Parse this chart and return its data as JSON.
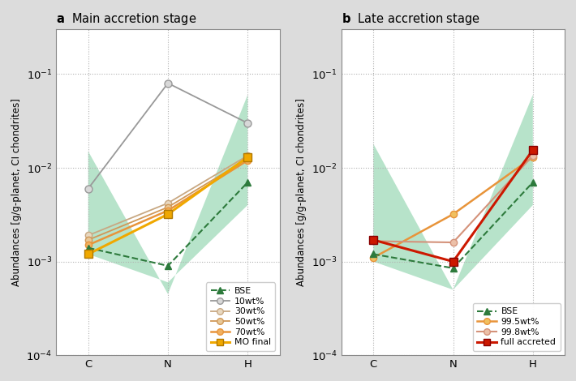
{
  "panel_a_title": "Main accretion stage",
  "panel_b_title": "Late accretion stage",
  "ylabel": "Abundances [g/g-planet, CI chondrites]",
  "elements": [
    "C",
    "N",
    "H"
  ],
  "ylim": [
    0.0001,
    0.3
  ],
  "yticks": [
    0.0001,
    0.001,
    0.01,
    0.1
  ],
  "panel_a": {
    "bse": [
      0.0014,
      0.0009,
      0.007
    ],
    "wt10": [
      0.006,
      0.08,
      0.03
    ],
    "wt30": [
      0.0019,
      0.0042,
      0.0135
    ],
    "wt50": [
      0.0017,
      0.0038,
      0.0125
    ],
    "wt70": [
      0.0015,
      0.0035,
      0.012
    ],
    "mo_final": [
      0.0012,
      0.0032,
      0.013
    ],
    "bse_poly_x": [
      0,
      1,
      2,
      2,
      1,
      0
    ],
    "bse_poly_y": [
      0.015,
      0.00045,
      0.06,
      0.004,
      0.0006,
      0.0012
    ]
  },
  "panel_b": {
    "bse": [
      0.0012,
      0.00085,
      0.007
    ],
    "wt995": [
      0.0011,
      0.0032,
      0.013
    ],
    "wt998": [
      0.00165,
      0.0016,
      0.0135
    ],
    "full_accreted": [
      0.0017,
      0.001,
      0.0155
    ],
    "bse_poly_x": [
      0,
      1,
      2,
      2,
      1,
      0
    ],
    "bse_poly_y": [
      0.018,
      0.0005,
      0.06,
      0.004,
      0.0005,
      0.001
    ]
  },
  "colors": {
    "bse_line": "#2d7a3c",
    "bse_fill": "#7dcca0",
    "wt10": "#999999",
    "wt30": "#d4b896",
    "wt50": "#d4a87a",
    "wt70": "#e8943a",
    "mo_final": "#f0a800",
    "wt995": "#e8943a",
    "wt998": "#d4927a",
    "full_accreted": "#cc1800"
  }
}
